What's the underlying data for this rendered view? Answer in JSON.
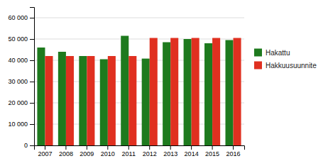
{
  "chart_data": {
    "type": "bar",
    "categories": [
      "2007",
      "2008",
      "2009",
      "2010",
      "2011",
      "2012",
      "2013",
      "2014",
      "2015",
      "2016"
    ],
    "series": [
      {
        "name": "Hakattu",
        "color": "#1e7a1e",
        "values": [
          46000,
          44000,
          42000,
          40500,
          51500,
          40800,
          48500,
          50000,
          48000,
          49500
        ]
      },
      {
        "name": "Hakkuusuunnite",
        "color": "#e03020",
        "values": [
          42000,
          42000,
          42000,
          42000,
          42000,
          50500,
          50500,
          50500,
          50500,
          50500
        ]
      }
    ],
    "ylim": [
      0,
      65000
    ],
    "yticks": [
      0,
      {
        "value": 10000,
        "label": "10 000"
      },
      {
        "value": 20000,
        "label": "20 000"
      },
      {
        "value": 30000,
        "label": "30 000"
      },
      {
        "value": 40000,
        "label": "40 000"
      },
      {
        "value": 50000,
        "label": "50 000"
      },
      {
        "value": 60000,
        "label": "60 000"
      }
    ],
    "grid": true,
    "legend": "right"
  }
}
